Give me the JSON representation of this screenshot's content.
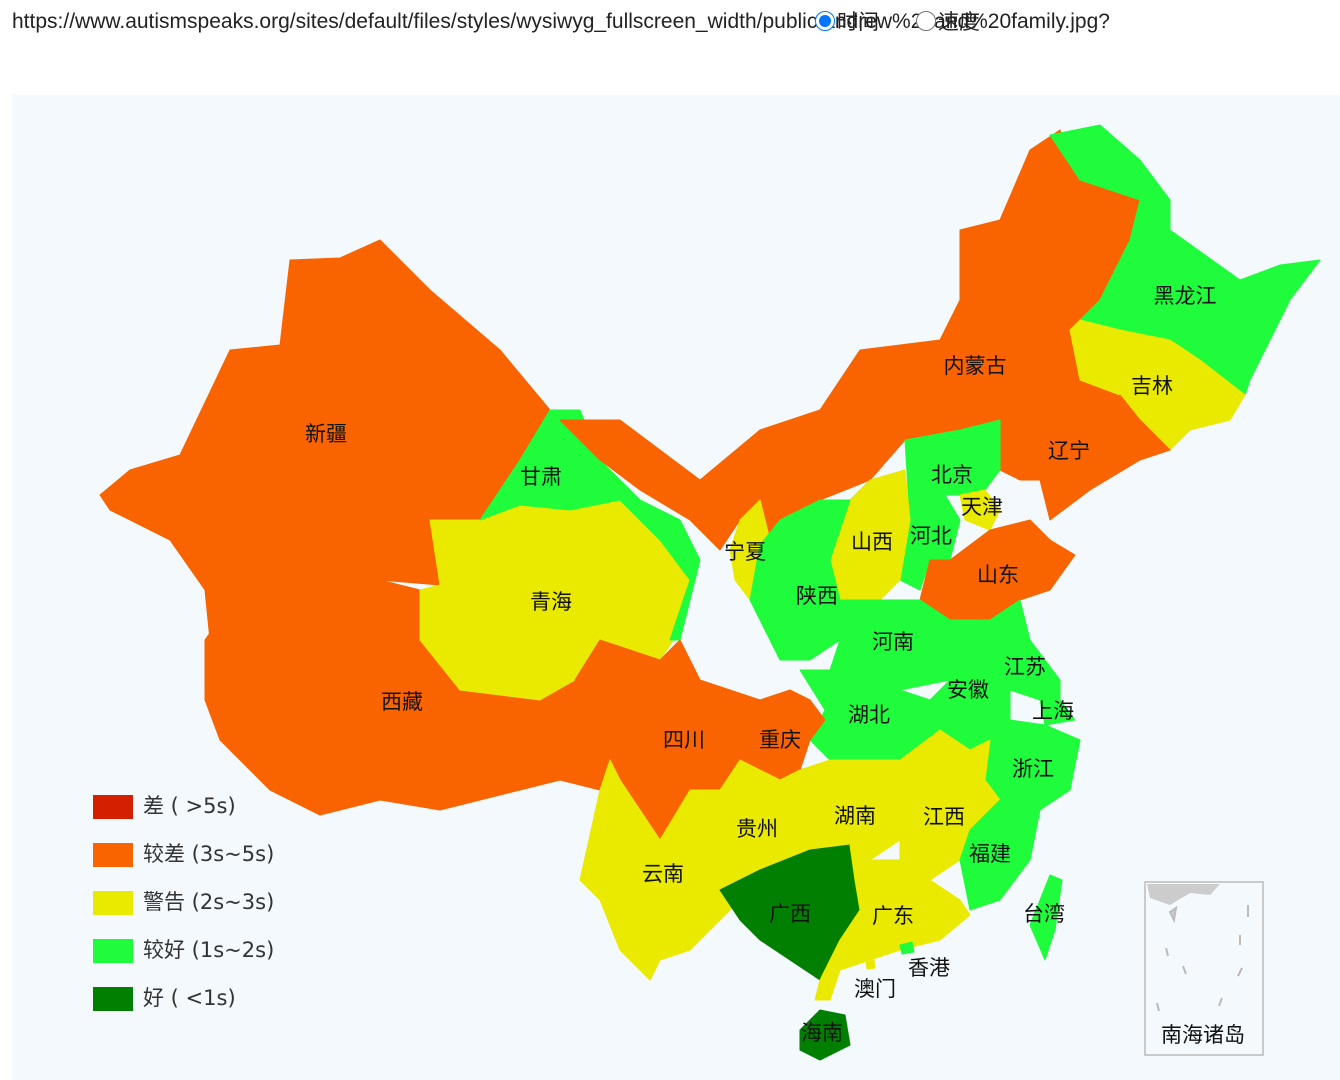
{
  "header": {
    "url": "https://www.autismspeaks.org/sites/default/files/styles/wysiwyg_fullscreen_width/public/andrew%20and%20family.jpg?"
  },
  "controls": [
    {
      "label": "时间",
      "checked": true
    },
    {
      "label": "速度",
      "checked": false
    }
  ],
  "map": {
    "regions": [
      {
        "name": "新疆",
        "color": "#f96400"
      },
      {
        "name": "西藏",
        "color": "#f96400"
      },
      {
        "name": "青海",
        "color": "#eaea00"
      },
      {
        "name": "甘肃",
        "color": "#1efc3c"
      },
      {
        "name": "内蒙古",
        "color": "#f96400"
      },
      {
        "name": "黑龙江",
        "color": "#1efc3c"
      },
      {
        "name": "吉林",
        "color": "#eaea00"
      },
      {
        "name": "辽宁",
        "color": "#f96400"
      },
      {
        "name": "河北",
        "color": "#1efc3c"
      },
      {
        "name": "北京",
        "color": "#1efc3c"
      },
      {
        "name": "天津",
        "color": "#eaea00"
      },
      {
        "name": "山西",
        "color": "#eaea00"
      },
      {
        "name": "山东",
        "color": "#f96400"
      },
      {
        "name": "宁夏",
        "color": "#eaea00"
      },
      {
        "name": "陕西",
        "color": "#1efc3c"
      },
      {
        "name": "河南",
        "color": "#1efc3c"
      },
      {
        "name": "江苏",
        "color": "#1efc3c"
      },
      {
        "name": "安徽",
        "color": "#1efc3c"
      },
      {
        "name": "上海",
        "color": "#1efc3c"
      },
      {
        "name": "湖北",
        "color": "#1efc3c"
      },
      {
        "name": "浙江",
        "color": "#1efc3c"
      },
      {
        "name": "重庆",
        "color": "#f96400"
      },
      {
        "name": "四川",
        "color": "#f96400"
      },
      {
        "name": "贵州",
        "color": "#eaea00"
      },
      {
        "name": "湖南",
        "color": "#eaea00"
      },
      {
        "name": "江西",
        "color": "#eaea00"
      },
      {
        "name": "福建",
        "color": "#1efc3c"
      },
      {
        "name": "云南",
        "color": "#eaea00"
      },
      {
        "name": "广西",
        "color": "#007f00"
      },
      {
        "name": "广东",
        "color": "#eaea00"
      },
      {
        "name": "海南",
        "color": "#007f00"
      },
      {
        "name": "台湾",
        "color": "#1efc3c"
      },
      {
        "name": "香港",
        "color": "#1efc3c"
      },
      {
        "name": "澳门",
        "color": "#eaea00"
      }
    ],
    "inset": {
      "label": "南海诸岛"
    }
  },
  "legend": [
    {
      "label": "差 ( >5s)",
      "color": "#d52000"
    },
    {
      "label": "较差 (3s~5s)",
      "color": "#f96400"
    },
    {
      "label": "警告 (2s~3s)",
      "color": "#eaea00"
    },
    {
      "label": "较好 (1s~2s)",
      "color": "#1efc3c"
    },
    {
      "label": "好 ( <1s)",
      "color": "#007f00"
    }
  ]
}
